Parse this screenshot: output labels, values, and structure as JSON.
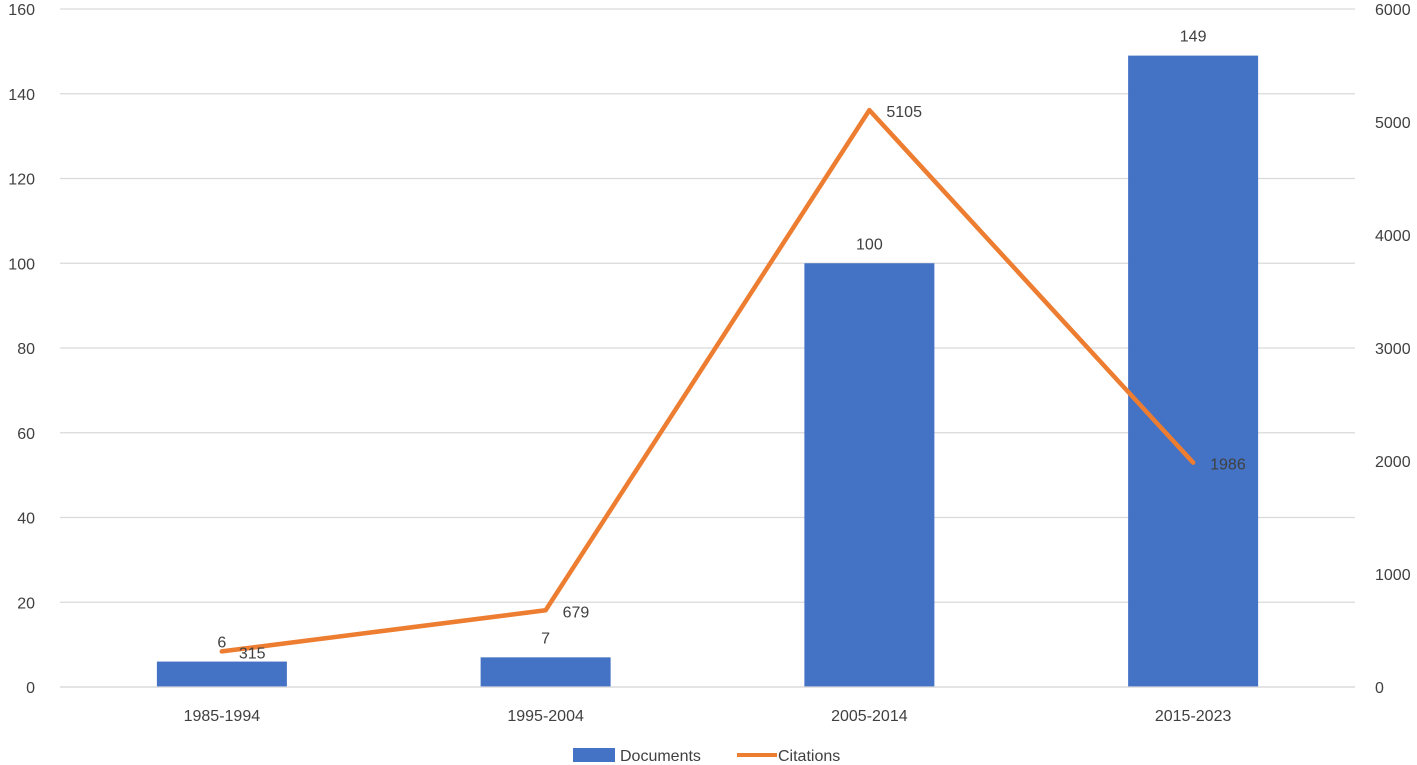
{
  "chart_data": {
    "type": "bar",
    "categories": [
      "1985-1994",
      "1995-2004",
      "2005-2014",
      "2015-2023"
    ],
    "series": [
      {
        "name": "Documents",
        "type": "bar",
        "axis": "left",
        "values": [
          6,
          7,
          100,
          149
        ],
        "labels": [
          "6",
          "7",
          "100",
          "149"
        ],
        "color": "#4472C4"
      },
      {
        "name": "Citations",
        "type": "line",
        "axis": "right",
        "values": [
          315,
          679,
          5105,
          1986
        ],
        "labels": [
          "315",
          "679",
          "5105",
          "1986"
        ],
        "color": "#ED7D31"
      }
    ],
    "y_left": {
      "ylim": [
        0,
        160
      ],
      "ticks": [
        0,
        20,
        40,
        60,
        80,
        100,
        120,
        140,
        160
      ],
      "tick_labels": [
        "0",
        "20",
        "40",
        "60",
        "80",
        "100",
        "120",
        "140",
        "160"
      ]
    },
    "y_right": {
      "ylim": [
        0,
        6000
      ],
      "ticks": [
        0,
        1000,
        2000,
        3000,
        4000,
        5000,
        6000
      ],
      "tick_labels": [
        "0",
        "1000",
        "2000",
        "3000",
        "4000",
        "5000",
        "6000"
      ]
    },
    "grid": true,
    "gridline_color": "#D9D9D9",
    "legend_position": "bottom",
    "title": "",
    "xlabel": "",
    "ylabel": ""
  }
}
